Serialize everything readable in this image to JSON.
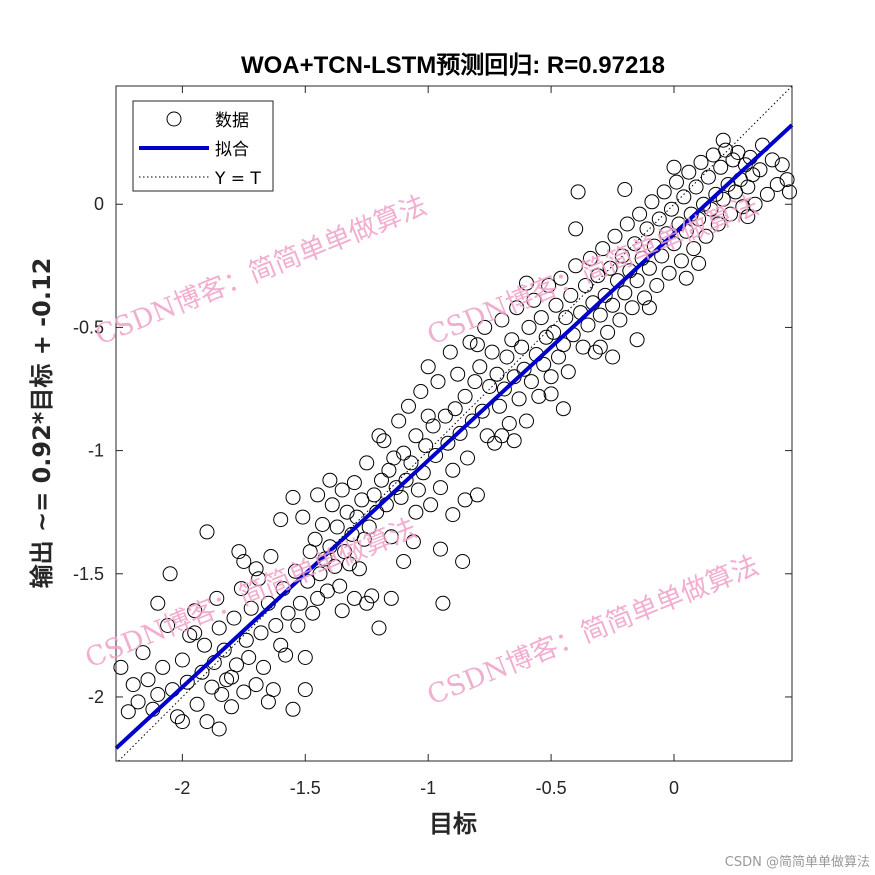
{
  "chart_data": {
    "type": "scatter",
    "title": "WOA+TCN-LSTM预测回归: R=0.97218",
    "xlabel": "目标",
    "ylabel": "输出 ~= 0.92*目标 + -0.12",
    "xlim": [
      -2.27,
      0.48
    ],
    "ylim": [
      -2.26,
      0.48
    ],
    "xticks": [
      -2,
      -1.5,
      -1,
      -0.5,
      0
    ],
    "yticks": [
      -2,
      -1.5,
      -1,
      -0.5,
      0
    ],
    "xtick_labels": [
      "-2",
      "-1.5",
      "-1",
      "-0.5",
      "0"
    ],
    "ytick_labels": [
      "-2",
      "-1.5",
      "-1",
      "-0.5",
      "0"
    ],
    "grid": false,
    "legend_position": "top-left",
    "legend": [
      {
        "label": "数据",
        "marker": "circle"
      },
      {
        "label": "拟合",
        "style": "line"
      },
      {
        "label": "Y = T",
        "style": "dotted"
      }
    ],
    "fit": {
      "slope": 0.92,
      "intercept": -0.12
    },
    "R": 0.97218,
    "series": [
      {
        "name": "数据",
        "points": [
          [
            -2.25,
            -1.88
          ],
          [
            -2.22,
            -2.06
          ],
          [
            -2.2,
            -1.95
          ],
          [
            -2.18,
            -2.02
          ],
          [
            -2.16,
            -1.82
          ],
          [
            -2.14,
            -1.93
          ],
          [
            -2.12,
            -2.05
          ],
          [
            -2.1,
            -1.99
          ],
          [
            -2.08,
            -1.88
          ],
          [
            -2.06,
            -1.71
          ],
          [
            -2.05,
            -1.5
          ],
          [
            -2.04,
            -1.97
          ],
          [
            -2.02,
            -2.08
          ],
          [
            -2.0,
            -1.85
          ],
          [
            -1.98,
            -1.94
          ],
          [
            -1.97,
            -1.75
          ],
          [
            -1.95,
            -1.65
          ],
          [
            -1.94,
            -2.03
          ],
          [
            -1.92,
            -1.9
          ],
          [
            -1.91,
            -1.79
          ],
          [
            -1.9,
            -2.1
          ],
          [
            -1.88,
            -1.96
          ],
          [
            -1.87,
            -1.86
          ],
          [
            -1.86,
            -1.6
          ],
          [
            -1.85,
            -1.72
          ],
          [
            -1.84,
            -1.99
          ],
          [
            -1.83,
            -1.81
          ],
          [
            -1.82,
            -1.93
          ],
          [
            -1.8,
            -2.04
          ],
          [
            -1.8,
            -1.92
          ],
          [
            -1.79,
            -1.68
          ],
          [
            -1.78,
            -1.87
          ],
          [
            -1.77,
            -1.41
          ],
          [
            -1.76,
            -1.56
          ],
          [
            -1.75,
            -1.98
          ],
          [
            -1.74,
            -1.77
          ],
          [
            -1.73,
            -1.84
          ],
          [
            -1.72,
            -1.64
          ],
          [
            -1.7,
            -1.95
          ],
          [
            -1.69,
            -1.52
          ],
          [
            -1.68,
            -1.74
          ],
          [
            -1.67,
            -1.88
          ],
          [
            -1.65,
            -1.62
          ],
          [
            -1.64,
            -1.43
          ],
          [
            -1.63,
            -1.97
          ],
          [
            -1.62,
            -1.71
          ],
          [
            -1.6,
            -1.79
          ],
          [
            -1.59,
            -1.56
          ],
          [
            -1.58,
            -1.83
          ],
          [
            -1.57,
            -1.66
          ],
          [
            -1.55,
            -1.19
          ],
          [
            -1.55,
            -2.05
          ],
          [
            -1.54,
            -1.49
          ],
          [
            -1.53,
            -1.71
          ],
          [
            -1.52,
            -1.62
          ],
          [
            -1.51,
            -1.27
          ],
          [
            -1.5,
            -1.84
          ],
          [
            -1.49,
            -1.53
          ],
          [
            -1.48,
            -1.41
          ],
          [
            -1.47,
            -1.66
          ],
          [
            -1.46,
            -1.36
          ],
          [
            -1.45,
            -1.6
          ],
          [
            -1.44,
            -1.5
          ],
          [
            -1.43,
            -1.3
          ],
          [
            -1.42,
            -1.44
          ],
          [
            -1.41,
            -1.57
          ],
          [
            -1.4,
            -1.39
          ],
          [
            -1.39,
            -1.22
          ],
          [
            -1.38,
            -1.47
          ],
          [
            -1.37,
            -1.31
          ],
          [
            -1.36,
            -1.55
          ],
          [
            -1.35,
            -1.16
          ],
          [
            -1.34,
            -1.41
          ],
          [
            -1.33,
            -1.25
          ],
          [
            -1.32,
            -1.46
          ],
          [
            -1.31,
            -1.34
          ],
          [
            -1.3,
            -1.13
          ],
          [
            -1.29,
            -1.27
          ],
          [
            -1.28,
            -1.48
          ],
          [
            -1.27,
            -1.2
          ],
          [
            -1.26,
            -1.36
          ],
          [
            -1.25,
            -1.05
          ],
          [
            -1.24,
            -1.31
          ],
          [
            -1.23,
            -1.59
          ],
          [
            -1.22,
            -1.18
          ],
          [
            -1.21,
            -1.25
          ],
          [
            -1.2,
            -1.72
          ],
          [
            -1.19,
            -1.12
          ],
          [
            -1.18,
            -0.96
          ],
          [
            -1.17,
            -1.22
          ],
          [
            -1.16,
            -1.08
          ],
          [
            -1.15,
            -1.35
          ],
          [
            -1.14,
            -1.03
          ],
          [
            -1.13,
            -1.15
          ],
          [
            -1.12,
            -0.88
          ],
          [
            -1.11,
            -1.19
          ],
          [
            -1.1,
            -1.01
          ],
          [
            -1.09,
            -1.12
          ],
          [
            -1.08,
            -0.82
          ],
          [
            -1.07,
            -1.05
          ],
          [
            -1.06,
            -1.37
          ],
          [
            -1.05,
            -0.94
          ],
          [
            -1.04,
            -1.16
          ],
          [
            -1.03,
            -0.76
          ],
          [
            -1.02,
            -1.09
          ],
          [
            -1.01,
            -0.98
          ],
          [
            -1.0,
            -0.66
          ],
          [
            -0.99,
            -1.22
          ],
          [
            -0.98,
            -0.9
          ],
          [
            -0.97,
            -1.02
          ],
          [
            -0.96,
            -0.72
          ],
          [
            -0.95,
            -1.15
          ],
          [
            -0.94,
            -1.62
          ],
          [
            -0.93,
            -0.86
          ],
          [
            -0.92,
            -0.97
          ],
          [
            -0.91,
            -0.6
          ],
          [
            -0.9,
            -1.08
          ],
          [
            -0.89,
            -0.83
          ],
          [
            -0.88,
            -0.69
          ],
          [
            -0.87,
            -0.93
          ],
          [
            -0.86,
            -1.45
          ],
          [
            -0.85,
            -0.78
          ],
          [
            -0.84,
            -1.03
          ],
          [
            -0.83,
            -0.56
          ],
          [
            -0.82,
            -0.88
          ],
          [
            -0.81,
            -0.72
          ],
          [
            -0.8,
            -1.18
          ],
          [
            -0.79,
            -0.66
          ],
          [
            -0.78,
            -0.84
          ],
          [
            -0.77,
            -0.5
          ],
          [
            -0.76,
            -0.94
          ],
          [
            -0.75,
            -0.74
          ],
          [
            -0.74,
            -0.6
          ],
          [
            -0.73,
            -0.97
          ],
          [
            -0.72,
            -0.69
          ],
          [
            -0.71,
            -0.82
          ],
          [
            -0.7,
            -0.47
          ],
          [
            -0.69,
            -0.75
          ],
          [
            -0.68,
            -0.62
          ],
          [
            -0.67,
            -0.89
          ],
          [
            -0.66,
            -0.55
          ],
          [
            -0.65,
            -0.7
          ],
          [
            -0.64,
            -0.42
          ],
          [
            -0.63,
            -0.79
          ],
          [
            -0.62,
            -0.58
          ],
          [
            -0.61,
            -0.67
          ],
          [
            -0.6,
            -0.88
          ],
          [
            -0.59,
            -0.5
          ],
          [
            -0.58,
            -0.72
          ],
          [
            -0.57,
            -0.39
          ],
          [
            -0.56,
            -0.61
          ],
          [
            -0.55,
            -0.78
          ],
          [
            -0.54,
            -0.46
          ],
          [
            -0.53,
            -0.65
          ],
          [
            -0.52,
            -0.54
          ],
          [
            -0.51,
            -0.33
          ],
          [
            -0.5,
            -0.7
          ],
          [
            -0.49,
            -0.52
          ],
          [
            -0.48,
            -0.41
          ],
          [
            -0.47,
            -0.62
          ],
          [
            -0.46,
            -0.3
          ],
          [
            -0.45,
            -0.57
          ],
          [
            -0.44,
            -0.46
          ],
          [
            -0.43,
            -0.68
          ],
          [
            -0.42,
            -0.37
          ],
          [
            -0.41,
            -0.53
          ],
          [
            -0.4,
            -0.25
          ],
          [
            -0.39,
            0.05
          ],
          [
            -0.38,
            -0.44
          ],
          [
            -0.37,
            -0.58
          ],
          [
            -0.36,
            -0.33
          ],
          [
            -0.35,
            -0.49
          ],
          [
            -0.34,
            -0.22
          ],
          [
            -0.33,
            -0.4
          ],
          [
            -0.32,
            -0.6
          ],
          [
            -0.31,
            -0.29
          ],
          [
            -0.3,
            -0.45
          ],
          [
            -0.29,
            -0.18
          ],
          [
            -0.28,
            -0.37
          ],
          [
            -0.27,
            -0.52
          ],
          [
            -0.26,
            -0.26
          ],
          [
            -0.25,
            -0.41
          ],
          [
            -0.24,
            -0.13
          ],
          [
            -0.23,
            -0.31
          ],
          [
            -0.22,
            -0.47
          ],
          [
            -0.21,
            -0.21
          ],
          [
            -0.2,
            -0.36
          ],
          [
            -0.19,
            -0.08
          ],
          [
            -0.18,
            -0.27
          ],
          [
            -0.17,
            -0.42
          ],
          [
            -0.16,
            -0.16
          ],
          [
            -0.15,
            -0.31
          ],
          [
            -0.14,
            -0.04
          ],
          [
            -0.13,
            -0.22
          ],
          [
            -0.12,
            -0.38
          ],
          [
            -0.11,
            -0.1
          ],
          [
            -0.1,
            -0.26
          ],
          [
            -0.09,
            0.01
          ],
          [
            -0.08,
            -0.17
          ],
          [
            -0.07,
            -0.33
          ],
          [
            -0.06,
            -0.06
          ],
          [
            -0.05,
            -0.21
          ],
          [
            -0.04,
            0.05
          ],
          [
            -0.03,
            -0.12
          ],
          [
            -0.02,
            -0.28
          ],
          [
            -0.01,
            -0.02
          ],
          [
            0.0,
            -0.16
          ],
          [
            0.01,
            0.09
          ],
          [
            0.02,
            -0.08
          ],
          [
            0.03,
            -0.23
          ],
          [
            0.04,
            0.03
          ],
          [
            0.05,
            -0.11
          ],
          [
            0.06,
            0.13
          ],
          [
            0.07,
            -0.04
          ],
          [
            0.08,
            -0.18
          ],
          [
            0.09,
            0.07
          ],
          [
            0.1,
            -0.06
          ],
          [
            0.11,
            0.17
          ],
          [
            0.12,
            0.0
          ],
          [
            0.13,
            -0.13
          ],
          [
            0.14,
            0.11
          ],
          [
            0.15,
            -0.02
          ],
          [
            0.16,
            0.2
          ],
          [
            0.17,
            0.04
          ],
          [
            0.18,
            -0.08
          ],
          [
            0.19,
            0.15
          ],
          [
            0.2,
            0.02
          ],
          [
            0.21,
            0.22
          ],
          [
            0.22,
            0.08
          ],
          [
            0.23,
            -0.04
          ],
          [
            0.24,
            0.18
          ],
          [
            0.25,
            0.05
          ],
          [
            0.26,
            0.21
          ],
          [
            0.27,
            0.1
          ],
          [
            0.28,
            -0.01
          ],
          [
            0.29,
            0.16
          ],
          [
            0.3,
            0.07
          ],
          [
            0.31,
            0.19
          ],
          [
            0.32,
            0.12
          ],
          [
            0.33,
            0.0
          ],
          [
            0.35,
            0.14
          ],
          [
            0.36,
            0.24
          ],
          [
            0.38,
            0.04
          ],
          [
            0.4,
            0.18
          ],
          [
            0.42,
            0.08
          ],
          [
            0.44,
            0.16
          ],
          [
            0.46,
            0.1
          ],
          [
            0.47,
            0.05
          ],
          [
            -1.9,
            -1.33
          ],
          [
            -1.85,
            -2.13
          ],
          [
            -1.75,
            -1.45
          ],
          [
            -1.65,
            -2.02
          ],
          [
            -1.45,
            -1.18
          ],
          [
            -1.35,
            -1.65
          ],
          [
            -1.25,
            -1.62
          ],
          [
            -1.15,
            -1.6
          ],
          [
            -1.05,
            -1.25
          ],
          [
            -0.95,
            -1.4
          ],
          [
            -0.85,
            -1.2
          ],
          [
            -0.65,
            -0.96
          ],
          [
            -0.45,
            -0.83
          ],
          [
            -0.25,
            -0.62
          ],
          [
            -0.15,
            -0.55
          ],
          [
            0.05,
            -0.3
          ],
          [
            -2.1,
            -1.62
          ],
          [
            -2.0,
            -2.1
          ],
          [
            -1.95,
            -1.74
          ],
          [
            -1.7,
            -1.48
          ],
          [
            -1.6,
            -1.28
          ],
          [
            -1.5,
            -1.97
          ],
          [
            -1.4,
            -1.12
          ],
          [
            -1.3,
            -1.6
          ],
          [
            -1.2,
            -0.94
          ],
          [
            -1.1,
            -1.45
          ],
          [
            -1.0,
            -0.86
          ],
          [
            -0.9,
            -1.26
          ],
          [
            -0.8,
            -0.57
          ],
          [
            -0.7,
            -0.94
          ],
          [
            -0.6,
            -0.32
          ],
          [
            -0.5,
            -0.77
          ],
          [
            -0.4,
            -0.1
          ],
          [
            -0.3,
            -0.58
          ],
          [
            -0.2,
            0.06
          ],
          [
            -0.1,
            -0.42
          ],
          [
            0.0,
            0.15
          ],
          [
            0.1,
            -0.24
          ],
          [
            0.2,
            0.26
          ],
          [
            0.3,
            -0.05
          ]
        ]
      }
    ]
  },
  "credit_text": "CSDN @简简单单做算法",
  "watermark_text": "CSDN博客：简简单单做算法"
}
